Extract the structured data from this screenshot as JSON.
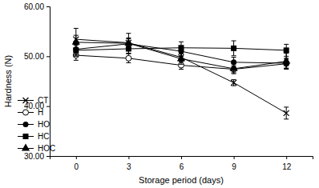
{
  "chart_data": {
    "type": "line",
    "x_label": "Storage period (days)",
    "y_label": "Hardness (N)",
    "categories": [
      "0",
      "3",
      "6",
      "9",
      "12"
    ],
    "ylim": [
      30,
      60
    ],
    "yticks": [
      {
        "value": 30,
        "label": "30.00"
      },
      {
        "value": 40,
        "label": "40.00"
      },
      {
        "value": 50,
        "label": "50.00"
      },
      {
        "value": 60,
        "label": "60.00"
      }
    ],
    "legend": "lower left",
    "series": [
      {
        "name": "CT",
        "color": "#000000",
        "marker": "x",
        "line_style": "solid",
        "values": [
          53.4,
          52.7,
          49.8,
          44.7,
          38.6
        ],
        "errors": [
          0.8,
          1.0,
          0.9,
          0.6,
          1.2
        ]
      },
      {
        "name": "H",
        "color": "#000000",
        "marker": "circle-open",
        "line_style": "solid",
        "values": [
          50.2,
          49.6,
          48.2,
          47.4,
          48.5
        ],
        "errors": [
          1.0,
          0.9,
          0.8,
          0.7,
          0.9
        ]
      },
      {
        "name": "HO",
        "color": "#000000",
        "marker": "circle",
        "line_style": "solid",
        "values": [
          51.4,
          52.5,
          51.0,
          48.8,
          48.6
        ],
        "errors": [
          1.0,
          1.0,
          1.0,
          1.0,
          1.0
        ]
      },
      {
        "name": "HC",
        "color": "#000000",
        "marker": "square",
        "line_style": "solid",
        "values": [
          51.2,
          51.5,
          51.7,
          51.6,
          51.2
        ],
        "errors": [
          1.0,
          0.9,
          1.2,
          1.5,
          1.2
        ]
      },
      {
        "name": "HOC",
        "color": "#000000",
        "marker": "triangle",
        "line_style": "solid",
        "values": [
          52.8,
          52.6,
          49.5,
          47.5,
          49.0
        ],
        "errors": [
          2.8,
          2.0,
          1.1,
          1.0,
          1.6
        ]
      }
    ]
  }
}
